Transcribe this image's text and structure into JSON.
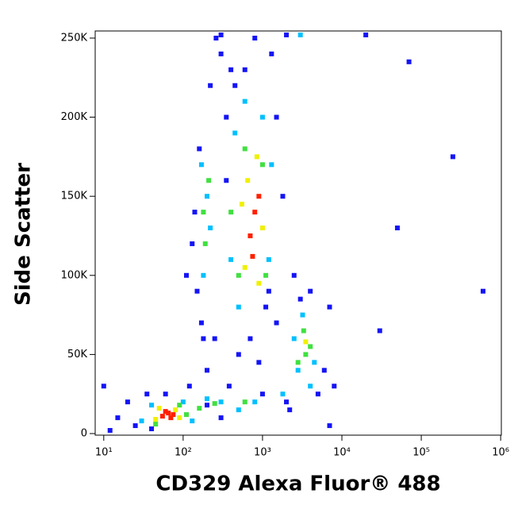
{
  "chart_data": {
    "type": "scatter",
    "x_label": "CD329 Alexa Fluor® 488",
    "y_label": "Side Scatter",
    "xscale": "log",
    "xlim": [
      7.8,
      1020000
    ],
    "xticks": [
      {
        "value": 10,
        "label": "10¹"
      },
      {
        "value": 100,
        "label": "10²"
      },
      {
        "value": 1000,
        "label": "10³"
      },
      {
        "value": 10000,
        "label": "10⁴"
      },
      {
        "value": 100000,
        "label": "10⁵"
      },
      {
        "value": 1000000,
        "label": "10⁶"
      }
    ],
    "ylim": [
      -1000,
      254500
    ],
    "yticks": [
      0,
      {
        "value": 50000,
        "label": "50K"
      },
      {
        "value": 100000,
        "label": "100K"
      },
      {
        "value": 150000,
        "label": "150K"
      },
      {
        "value": 200000,
        "label": "200K"
      },
      {
        "value": 250000,
        "label": "250K"
      }
    ],
    "series": [
      {
        "color": "#1414f5",
        "x": [
          25,
          35,
          120,
          200,
          180,
          150,
          130,
          160,
          300,
          400,
          350,
          250,
          500,
          1200,
          1500,
          1800,
          1300,
          450,
          380,
          2000,
          6000,
          7000,
          1500,
          2500,
          700,
          900,
          600,
          800,
          1100,
          350,
          220,
          260,
          140,
          110,
          170,
          3000,
          5000,
          8000,
          4000,
          2200,
          60,
          20,
          15,
          40,
          12,
          300,
          200,
          1000,
          50000,
          600000,
          250000,
          30000,
          7000,
          10,
          300,
          2000,
          20000,
          70000
        ],
        "values": [
          5000,
          25000,
          30000,
          40000,
          60000,
          90000,
          120000,
          180000,
          240000,
          230000,
          200000,
          60000,
          50000,
          90000,
          200000,
          150000,
          240000,
          220000,
          30000,
          20000,
          40000,
          80000,
          70000,
          100000,
          60000,
          45000,
          230000,
          250000,
          80000,
          160000,
          220000,
          250000,
          140000,
          100000,
          70000,
          85000,
          25000,
          30000,
          90000,
          15000,
          25000,
          20000,
          10000,
          3000,
          2000,
          10000,
          18000,
          25000,
          130000,
          90000,
          175000,
          65000,
          5000,
          30000,
          252000,
          252000,
          252000,
          235000
        ]
      },
      {
        "color": "#00c0ff",
        "x": [
          30,
          40,
          100,
          130,
          200,
          300,
          180,
          200,
          170,
          220,
          500,
          450,
          1200,
          1300,
          400,
          600,
          1000,
          2800,
          4500,
          3200,
          4000,
          2500,
          1800,
          800,
          500,
          3000
        ],
        "values": [
          8000,
          18000,
          20000,
          8000,
          22000,
          20000,
          100000,
          150000,
          170000,
          130000,
          80000,
          190000,
          110000,
          170000,
          110000,
          210000,
          200000,
          40000,
          45000,
          75000,
          30000,
          60000,
          25000,
          20000,
          15000,
          252000
        ]
      },
      {
        "color": "#40e040",
        "x": [
          45,
          90,
          110,
          160,
          250,
          190,
          210,
          180,
          500,
          600,
          1000,
          1100,
          400,
          3500,
          3300,
          4000,
          2800,
          600
        ],
        "values": [
          6000,
          18000,
          12000,
          16000,
          19000,
          120000,
          160000,
          140000,
          100000,
          180000,
          170000,
          100000,
          140000,
          50000,
          65000,
          55000,
          45000,
          20000
        ]
      },
      {
        "color": "#f0f000",
        "x": [
          45,
          80,
          50,
          90,
          650,
          1000,
          600,
          850,
          550,
          900,
          3500
        ],
        "values": [
          9000,
          15000,
          16000,
          10000,
          160000,
          130000,
          105000,
          175000,
          145000,
          95000,
          58000
        ]
      },
      {
        "color": "#ff2000",
        "x": [
          55,
          65,
          70,
          60,
          75,
          800,
          700,
          900,
          750
        ],
        "values": [
          11000,
          13000,
          10000,
          14000,
          12000,
          140000,
          125000,
          150000,
          112000
        ]
      }
    ]
  }
}
